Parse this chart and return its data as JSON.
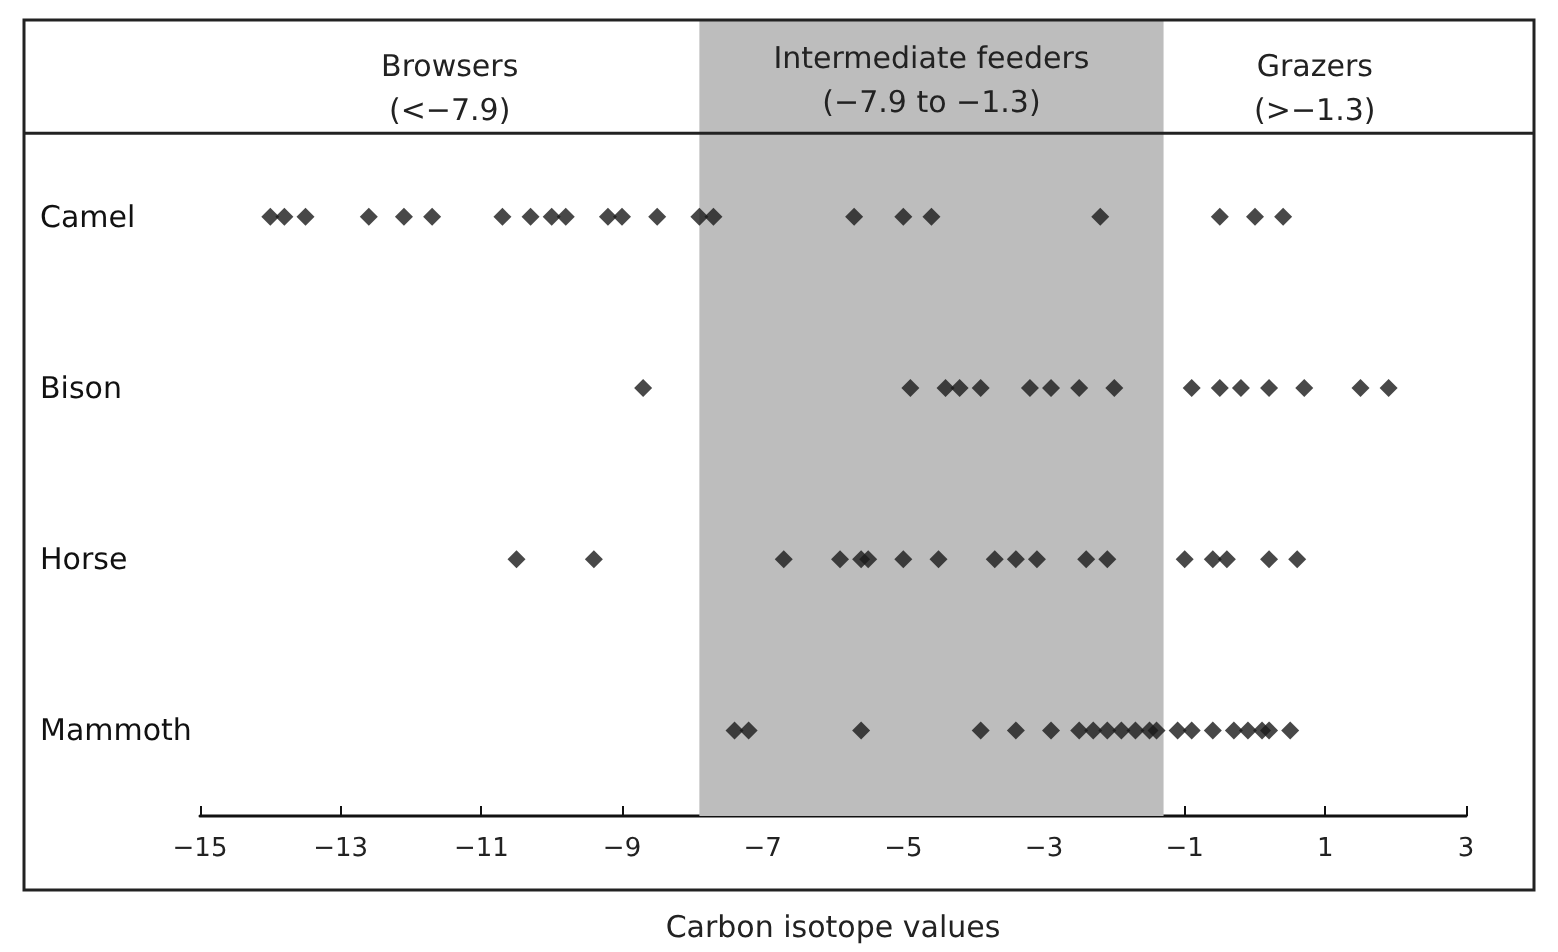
{
  "chart_data": {
    "type": "scatter",
    "orientation": "horizontal",
    "xlabel": "Carbon isotope values",
    "categories": [
      "Camel",
      "Bison",
      "Horse",
      "Mammoth"
    ],
    "series": [
      {
        "color": "#1a1a1a",
        "x": [
          "Camel",
          "Camel",
          "Camel",
          "Camel",
          "Camel",
          "Camel",
          "Camel",
          "Camel",
          "Camel",
          "Camel",
          "Camel",
          "Camel",
          "Camel",
          "Camel",
          "Camel",
          "Camel",
          "Camel",
          "Camel",
          "Camel",
          "Camel",
          "Camel",
          "Camel"
        ],
        "values": [
          -14.0,
          -13.8,
          -13.5,
          -12.6,
          -12.1,
          -11.7,
          -10.7,
          -10.3,
          -10.0,
          -9.8,
          -9.2,
          -9.0,
          -8.5,
          -7.9,
          -7.7,
          -5.7,
          -5.0,
          -4.6,
          -2.2,
          -0.5,
          0.0,
          0.4
        ]
      },
      {
        "color": "#1a1a1a",
        "x": [
          "Bison",
          "Bison",
          "Bison",
          "Bison",
          "Bison",
          "Bison",
          "Bison",
          "Bison",
          "Bison",
          "Bison",
          "Bison",
          "Bison",
          "Bison",
          "Bison",
          "Bison",
          "Bison"
        ],
        "values": [
          -8.7,
          -4.9,
          -4.4,
          -4.2,
          -3.9,
          -3.2,
          -2.9,
          -2.5,
          -2.0,
          -0.9,
          -0.5,
          -0.2,
          0.2,
          0.7,
          1.5,
          1.9
        ]
      },
      {
        "color": "#1a1a1a",
        "x": [
          "Horse",
          "Horse",
          "Horse",
          "Horse",
          "Horse",
          "Horse",
          "Horse",
          "Horse",
          "Horse",
          "Horse",
          "Horse",
          "Horse",
          "Horse",
          "Horse",
          "Horse",
          "Horse",
          "Horse",
          "Horse"
        ],
        "values": [
          -10.5,
          -9.4,
          -6.7,
          -5.9,
          -5.6,
          -5.5,
          -5.0,
          -4.5,
          -3.7,
          -3.4,
          -3.1,
          -2.4,
          -2.1,
          -1.0,
          -0.6,
          -0.4,
          0.2,
          0.6
        ]
      },
      {
        "color": "#1a1a1a",
        "x": [
          "Mammoth",
          "Mammoth",
          "Mammoth",
          "Mammoth",
          "Mammoth",
          "Mammoth",
          "Mammoth",
          "Mammoth",
          "Mammoth",
          "Mammoth",
          "Mammoth",
          "Mammoth",
          "Mammoth",
          "Mammoth",
          "Mammoth",
          "Mammoth",
          "Mammoth",
          "Mammoth",
          "Mammoth",
          "Mammoth",
          "Mammoth"
        ],
        "values": [
          -7.4,
          -7.2,
          -5.6,
          -3.9,
          -3.4,
          -2.9,
          -2.5,
          -2.3,
          -2.1,
          -1.9,
          -1.7,
          -1.5,
          -1.4,
          -1.1,
          -0.9,
          -0.6,
          -0.3,
          -0.1,
          0.1,
          0.2,
          0.5
        ]
      }
    ],
    "marker": "diamond",
    "xlim": [
      -15,
      3
    ],
    "xticks": [
      {
        "value": -15,
        "label": "−15"
      },
      {
        "value": -13,
        "label": "−13"
      },
      {
        "value": -11,
        "label": "−11"
      },
      {
        "value": -9,
        "label": "−9"
      },
      {
        "value": -7,
        "label": "−7"
      },
      {
        "value": -5,
        "label": "−5"
      },
      {
        "value": -3,
        "label": "−3"
      },
      {
        "value": -1,
        "label": "−1"
      },
      {
        "value": 1,
        "label": "1"
      },
      {
        "value": 3,
        "label": "3"
      }
    ],
    "bands": [
      {
        "axis": "x",
        "from": -7.9,
        "to": -1.3,
        "label": "Intermediate feeders\n(−7.9 to −1.3)",
        "color": "#bdbdbd"
      }
    ],
    "annotations": [
      "Browsers\n(<−7.9)",
      "Grazers\n(>−1.3)"
    ],
    "grid": false
  }
}
